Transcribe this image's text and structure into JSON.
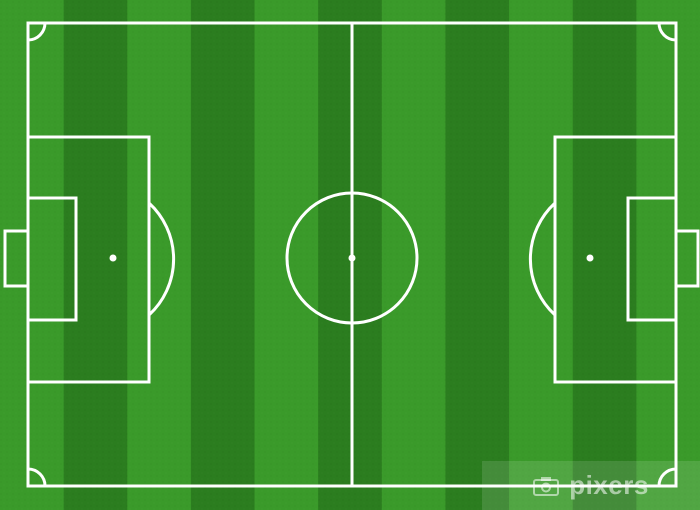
{
  "image": {
    "subject": "soccer-pitch",
    "colors": {
      "stripe_light": "#3a9a2a",
      "stripe_dark": "#2b7d1f",
      "line": "#ffffff"
    },
    "stripe_count": 11
  },
  "watermark": {
    "text": "pixers",
    "icon": "camera-icon"
  }
}
